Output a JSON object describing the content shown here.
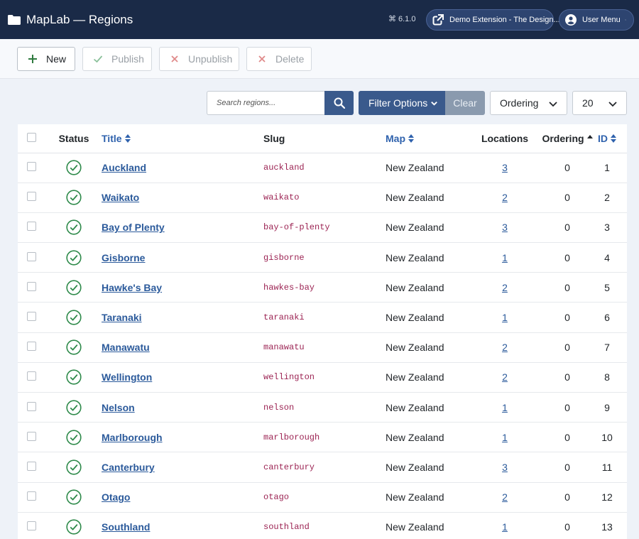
{
  "header": {
    "app_title": "MapLab — Regions",
    "version": "6.1.0",
    "extension_button": "Demo Extension - The Design...",
    "user_menu": "User Menu"
  },
  "toolbar": {
    "new_label": "New",
    "publish_label": "Publish",
    "unpublish_label": "Unpublish",
    "delete_label": "Delete"
  },
  "filters": {
    "search_placeholder": "Search regions...",
    "filter_options_label": "Filter Options",
    "clear_label": "Clear",
    "ordering_value": "Ordering",
    "limit_value": "20"
  },
  "table": {
    "columns": {
      "status": "Status",
      "title": "Title",
      "slug": "Slug",
      "map": "Map",
      "locations": "Locations",
      "ordering": "Ordering",
      "id": "ID"
    },
    "rows": [
      {
        "title": "Auckland",
        "slug": "auckland",
        "map": "New Zealand",
        "locations": "3",
        "ordering": "0",
        "id": "1"
      },
      {
        "title": "Waikato",
        "slug": "waikato",
        "map": "New Zealand",
        "locations": "2",
        "ordering": "0",
        "id": "2"
      },
      {
        "title": "Bay of Plenty",
        "slug": "bay-of-plenty",
        "map": "New Zealand",
        "locations": "3",
        "ordering": "0",
        "id": "3"
      },
      {
        "title": "Gisborne",
        "slug": "gisborne",
        "map": "New Zealand",
        "locations": "1",
        "ordering": "0",
        "id": "4"
      },
      {
        "title": "Hawke's Bay",
        "slug": "hawkes-bay",
        "map": "New Zealand",
        "locations": "2",
        "ordering": "0",
        "id": "5"
      },
      {
        "title": "Taranaki",
        "slug": "taranaki",
        "map": "New Zealand",
        "locations": "1",
        "ordering": "0",
        "id": "6"
      },
      {
        "title": "Manawatu",
        "slug": "manawatu",
        "map": "New Zealand",
        "locations": "2",
        "ordering": "0",
        "id": "7"
      },
      {
        "title": "Wellington",
        "slug": "wellington",
        "map": "New Zealand",
        "locations": "2",
        "ordering": "0",
        "id": "8"
      },
      {
        "title": "Nelson",
        "slug": "nelson",
        "map": "New Zealand",
        "locations": "1",
        "ordering": "0",
        "id": "9"
      },
      {
        "title": "Marlborough",
        "slug": "marlborough",
        "map": "New Zealand",
        "locations": "1",
        "ordering": "0",
        "id": "10"
      },
      {
        "title": "Canterbury",
        "slug": "canterbury",
        "map": "New Zealand",
        "locations": "3",
        "ordering": "0",
        "id": "11"
      },
      {
        "title": "Otago",
        "slug": "otago",
        "map": "New Zealand",
        "locations": "2",
        "ordering": "0",
        "id": "12"
      },
      {
        "title": "Southland",
        "slug": "southland",
        "map": "New Zealand",
        "locations": "1",
        "ordering": "0",
        "id": "13"
      }
    ]
  },
  "icons": {
    "status_published": "check-circle-icon",
    "search": "search-icon",
    "folder": "folder-icon"
  },
  "colors": {
    "header_bg": "#1a2a47",
    "primary": "#3a5a8c",
    "link": "#2b5a9b",
    "published_green": "#2e8a4a",
    "slug_code": "#9b2252"
  }
}
